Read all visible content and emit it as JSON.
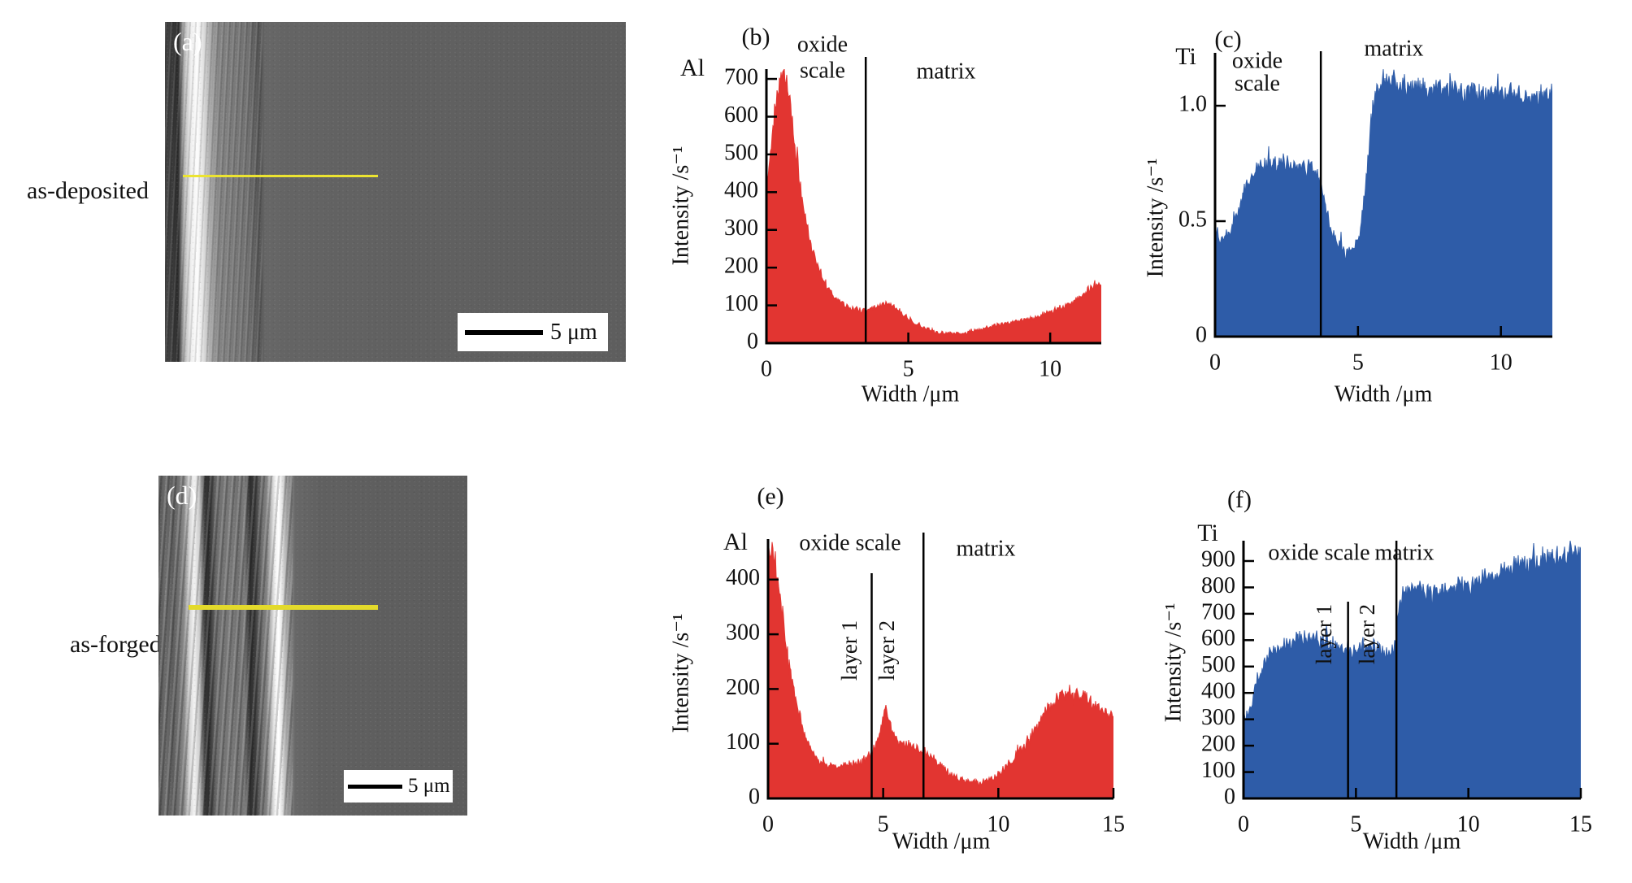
{
  "figure": {
    "panels": {
      "a": {
        "label": "(a)",
        "row_label": "as-deposited",
        "scale_bar": "5 μm"
      },
      "d": {
        "label": "(d)",
        "row_label": "as-forged",
        "scale_bar": "5 μm"
      }
    }
  },
  "chart_data": [
    {
      "id": "b",
      "type": "area",
      "panel_label": "(b)",
      "element": "Al",
      "xlabel": "Width /μm",
      "ylabel": "Intensity /s⁻¹",
      "color": "#e23531",
      "x_range": [
        0,
        11.8
      ],
      "ylim": [
        0,
        726
      ],
      "x_ticks": [
        {
          "v": 0,
          "t": "0"
        },
        {
          "v": 5,
          "t": "5"
        },
        {
          "v": 10,
          "t": "10"
        }
      ],
      "y_ticks": [
        {
          "v": 0,
          "t": "0"
        },
        {
          "v": 100,
          "t": "100"
        },
        {
          "v": 200,
          "t": "200"
        },
        {
          "v": 300,
          "t": "300"
        },
        {
          "v": 400,
          "t": "400"
        },
        {
          "v": 500,
          "t": "500"
        },
        {
          "v": 600,
          "t": "600"
        },
        {
          "v": 700,
          "t": "700"
        }
      ],
      "region_labels": [
        "oxide scale",
        "matrix"
      ],
      "layer_labels": [],
      "boundaries": [
        {
          "x": 3.5,
          "extent": "full"
        }
      ],
      "noise": {
        "rel": 0.05,
        "abs": 5
      },
      "profile": [
        [
          0,
          400
        ],
        [
          0.15,
          520
        ],
        [
          0.3,
          625
        ],
        [
          0.45,
          690
        ],
        [
          0.55,
          705
        ],
        [
          0.7,
          688
        ],
        [
          0.85,
          620
        ],
        [
          1.0,
          530
        ],
        [
          1.15,
          440
        ],
        [
          1.3,
          365
        ],
        [
          1.5,
          285
        ],
        [
          1.7,
          228
        ],
        [
          1.9,
          182
        ],
        [
          2.1,
          152
        ],
        [
          2.4,
          122
        ],
        [
          2.7,
          104
        ],
        [
          3.0,
          94
        ],
        [
          3.3,
          88
        ],
        [
          3.6,
          92
        ],
        [
          3.9,
          98
        ],
        [
          4.1,
          104
        ],
        [
          4.3,
          102
        ],
        [
          4.5,
          95
        ],
        [
          4.8,
          78
        ],
        [
          5.1,
          58
        ],
        [
          5.4,
          45
        ],
        [
          5.7,
          37
        ],
        [
          6.0,
          30
        ],
        [
          6.4,
          25
        ],
        [
          6.8,
          26
        ],
        [
          7.2,
          31
        ],
        [
          7.6,
          38
        ],
        [
          8.0,
          45
        ],
        [
          8.4,
          52
        ],
        [
          8.8,
          58
        ],
        [
          9.2,
          66
        ],
        [
          9.6,
          73
        ],
        [
          10.0,
          82
        ],
        [
          10.4,
          94
        ],
        [
          10.8,
          110
        ],
        [
          11.2,
          132
        ],
        [
          11.5,
          150
        ],
        [
          11.8,
          158
        ]
      ]
    },
    {
      "id": "c",
      "type": "area",
      "panel_label": "(c)",
      "element": "Ti",
      "xlabel": "Width /μm",
      "ylabel": "Intensity /s⁻¹",
      "color": "#2e5ca8",
      "x_range": [
        0,
        11.8
      ],
      "ylim": [
        0,
        1.229
      ],
      "x_ticks": [
        {
          "v": 0,
          "t": "0"
        },
        {
          "v": 5,
          "t": "5"
        },
        {
          "v": 10,
          "t": "10"
        }
      ],
      "y_ticks": [
        {
          "v": 0,
          "t": "0"
        },
        {
          "v": 0.5,
          "t": "0.5"
        },
        {
          "v": 1.0,
          "t": "1.0"
        }
      ],
      "region_labels": [
        "oxide scale",
        "matrix"
      ],
      "layer_labels": [],
      "boundaries": [
        {
          "x": 3.7,
          "extent": "full"
        }
      ],
      "noise": {
        "rel": 0.04,
        "abs": 0.018
      },
      "profile": [
        [
          0,
          0.44
        ],
        [
          0.2,
          0.42
        ],
        [
          0.4,
          0.44
        ],
        [
          0.6,
          0.47
        ],
        [
          0.8,
          0.53
        ],
        [
          1.0,
          0.62
        ],
        [
          1.2,
          0.69
        ],
        [
          1.4,
          0.72
        ],
        [
          1.7,
          0.74
        ],
        [
          2.0,
          0.75
        ],
        [
          2.3,
          0.76
        ],
        [
          2.6,
          0.75
        ],
        [
          2.9,
          0.73
        ],
        [
          3.2,
          0.745
        ],
        [
          3.5,
          0.72
        ],
        [
          3.7,
          0.67
        ],
        [
          3.9,
          0.54
        ],
        [
          4.1,
          0.44
        ],
        [
          4.35,
          0.39
        ],
        [
          4.6,
          0.36
        ],
        [
          4.85,
          0.385
        ],
        [
          5.05,
          0.44
        ],
        [
          5.25,
          0.62
        ],
        [
          5.45,
          0.92
        ],
        [
          5.6,
          1.06
        ],
        [
          5.8,
          1.1
        ],
        [
          6.1,
          1.1
        ],
        [
          6.5,
          1.09
        ],
        [
          7.0,
          1.08
        ],
        [
          7.5,
          1.075
        ],
        [
          8.0,
          1.08
        ],
        [
          8.5,
          1.065
        ],
        [
          9.0,
          1.06
        ],
        [
          9.5,
          1.055
        ],
        [
          10.0,
          1.05
        ],
        [
          10.5,
          1.045
        ],
        [
          11.0,
          1.04
        ],
        [
          11.4,
          1.05
        ],
        [
          11.8,
          1.06
        ]
      ]
    },
    {
      "id": "e",
      "type": "area",
      "panel_label": "(e)",
      "element": "Al",
      "xlabel": "Width /μm",
      "ylabel": "Intensity /s⁻¹",
      "color": "#e23531",
      "x_range": [
        0,
        15
      ],
      "ylim": [
        0,
        474
      ],
      "x_ticks": [
        {
          "v": 0,
          "t": "0"
        },
        {
          "v": 5,
          "t": "5"
        },
        {
          "v": 10,
          "t": "10"
        },
        {
          "v": 15,
          "t": "15"
        }
      ],
      "y_ticks": [
        {
          "v": 0,
          "t": "0"
        },
        {
          "v": 100,
          "t": "100"
        },
        {
          "v": 200,
          "t": "200"
        },
        {
          "v": 300,
          "t": "300"
        },
        {
          "v": 400,
          "t": "400"
        }
      ],
      "region_labels": [
        "oxide scale",
        "matrix"
      ],
      "layer_labels": [
        "layer 1",
        "layer 2"
      ],
      "boundaries": [
        {
          "x": 4.5,
          "extent": "layer-divider"
        },
        {
          "x": 6.75,
          "extent": "full"
        }
      ],
      "noise": {
        "rel": 0.05,
        "abs": 6
      },
      "profile": [
        [
          0,
          455
        ],
        [
          0.15,
          462
        ],
        [
          0.3,
          438
        ],
        [
          0.45,
          398
        ],
        [
          0.6,
          348
        ],
        [
          0.75,
          298
        ],
        [
          0.9,
          252
        ],
        [
          1.05,
          215
        ],
        [
          1.2,
          186
        ],
        [
          1.4,
          146
        ],
        [
          1.6,
          116
        ],
        [
          1.8,
          96
        ],
        [
          2.0,
          81
        ],
        [
          2.3,
          68
        ],
        [
          2.6,
          61
        ],
        [
          3.0,
          58
        ],
        [
          3.4,
          61
        ],
        [
          3.8,
          65
        ],
        [
          4.1,
          69
        ],
        [
          4.4,
          79
        ],
        [
          4.6,
          90
        ],
        [
          4.8,
          108
        ],
        [
          5.0,
          148
        ],
        [
          5.1,
          166
        ],
        [
          5.2,
          152
        ],
        [
          5.35,
          128
        ],
        [
          5.5,
          114
        ],
        [
          5.7,
          106
        ],
        [
          5.9,
          102
        ],
        [
          6.1,
          97
        ],
        [
          6.4,
          93
        ],
        [
          6.7,
          88
        ],
        [
          7.0,
          80
        ],
        [
          7.3,
          68
        ],
        [
          7.6,
          56
        ],
        [
          7.9,
          46
        ],
        [
          8.2,
          38
        ],
        [
          8.5,
          32
        ],
        [
          8.8,
          29
        ],
        [
          9.1,
          28
        ],
        [
          9.4,
          31
        ],
        [
          9.7,
          37
        ],
        [
          10.0,
          45
        ],
        [
          10.3,
          56
        ],
        [
          10.6,
          70
        ],
        [
          10.9,
          86
        ],
        [
          11.2,
          102
        ],
        [
          11.5,
          122
        ],
        [
          11.8,
          142
        ],
        [
          12.1,
          162
        ],
        [
          12.4,
          177
        ],
        [
          12.7,
          189
        ],
        [
          13.0,
          196
        ],
        [
          13.3,
          193
        ],
        [
          13.6,
          187
        ],
        [
          13.9,
          178
        ],
        [
          14.2,
          170
        ],
        [
          14.5,
          163
        ],
        [
          14.8,
          158
        ],
        [
          15,
          153
        ]
      ]
    },
    {
      "id": "f",
      "type": "area",
      "panel_label": "(f)",
      "element": "Ti",
      "xlabel": "Width /μm",
      "ylabel": "Intensity /s⁻¹",
      "color": "#2e5ca8",
      "x_range": [
        0,
        15
      ],
      "ylim": [
        0,
        977
      ],
      "x_ticks": [
        {
          "v": 0,
          "t": "0"
        },
        {
          "v": 5,
          "t": "5"
        },
        {
          "v": 10,
          "t": "10"
        },
        {
          "v": 15,
          "t": "15"
        }
      ],
      "y_ticks": [
        {
          "v": 0,
          "t": "0"
        },
        {
          "v": 100,
          "t": "100"
        },
        {
          "v": 200,
          "t": "200"
        },
        {
          "v": 300,
          "t": "300"
        },
        {
          "v": 400,
          "t": "400"
        },
        {
          "v": 500,
          "t": "500"
        },
        {
          "v": 600,
          "t": "600"
        },
        {
          "v": 700,
          "t": "700"
        },
        {
          "v": 800,
          "t": "800"
        },
        {
          "v": 900,
          "t": "900"
        }
      ],
      "region_labels": [
        "oxide scale",
        "matrix"
      ],
      "layer_labels": [
        "layer 1",
        "layer 2"
      ],
      "boundaries": [
        {
          "x": 4.65,
          "extent": "layer-divider"
        },
        {
          "x": 6.8,
          "extent": "full"
        }
      ],
      "noise": {
        "rel": 0.035,
        "abs": 18
      },
      "profile": [
        [
          0,
          295
        ],
        [
          0.2,
          322
        ],
        [
          0.4,
          372
        ],
        [
          0.6,
          432
        ],
        [
          0.8,
          482
        ],
        [
          1.0,
          520
        ],
        [
          1.2,
          545
        ],
        [
          1.5,
          566
        ],
        [
          1.8,
          580
        ],
        [
          2.1,
          590
        ],
        [
          2.4,
          600
        ],
        [
          2.7,
          606
        ],
        [
          3.0,
          614
        ],
        [
          3.3,
          606
        ],
        [
          3.6,
          596
        ],
        [
          3.9,
          586
        ],
        [
          4.2,
          576
        ],
        [
          4.5,
          566
        ],
        [
          4.8,
          560
        ],
        [
          5.1,
          566
        ],
        [
          5.4,
          576
        ],
        [
          5.7,
          580
        ],
        [
          6.0,
          570
        ],
        [
          6.3,
          556
        ],
        [
          6.55,
          548
        ],
        [
          6.7,
          560
        ],
        [
          6.85,
          680
        ],
        [
          7.0,
          762
        ],
        [
          7.2,
          790
        ],
        [
          7.5,
          800
        ],
        [
          7.8,
          794
        ],
        [
          8.1,
          788
        ],
        [
          8.4,
          786
        ],
        [
          8.7,
          790
        ],
        [
          9.0,
          798
        ],
        [
          9.3,
          801
        ],
        [
          9.6,
          806
        ],
        [
          9.9,
          812
        ],
        [
          10.2,
          818
        ],
        [
          10.5,
          826
        ],
        [
          10.8,
          836
        ],
        [
          11.1,
          846
        ],
        [
          11.4,
          856
        ],
        [
          11.7,
          866
        ],
        [
          12.0,
          873
        ],
        [
          12.3,
          881
        ],
        [
          12.6,
          888
        ],
        [
          12.9,
          895
        ],
        [
          13.2,
          901
        ],
        [
          13.5,
          906
        ],
        [
          13.8,
          913
        ],
        [
          14.1,
          919
        ],
        [
          14.4,
          926
        ],
        [
          14.7,
          933
        ],
        [
          15,
          940
        ]
      ]
    }
  ]
}
